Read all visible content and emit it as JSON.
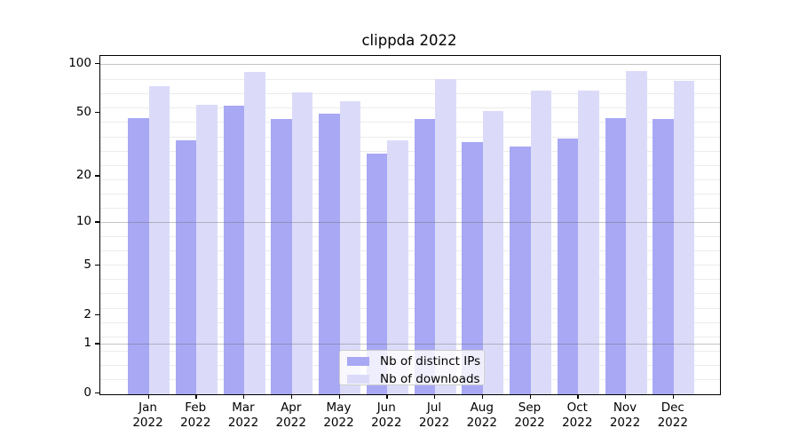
{
  "title": "clippda 2022",
  "chart_data": {
    "type": "bar",
    "title": "clippda 2022",
    "categories": [
      "Jan",
      "Feb",
      "Mar",
      "Apr",
      "May",
      "Jun",
      "Jul",
      "Aug",
      "Sep",
      "Oct",
      "Nov",
      "Dec"
    ],
    "x_tick_year": "2022",
    "series": [
      {
        "name": "Nb of distinct IPs",
        "color": "#a8a8f5",
        "values": [
          47,
          34,
          56,
          46,
          50,
          28,
          46,
          33,
          31,
          35,
          47,
          46
        ]
      },
      {
        "name": "Nb of downloads",
        "color": "#dbdbf9",
        "values": [
          74,
          57,
          90,
          68,
          60,
          34,
          82,
          52,
          69,
          69,
          91,
          80
        ]
      }
    ],
    "xlabel": "",
    "ylabel": "",
    "y_scale": "log1p (position proportional to ln(1+value))",
    "y_ticks": [
      100,
      50,
      20,
      10,
      5,
      2,
      1,
      0
    ],
    "ylim": [
      0,
      113
    ],
    "grid": "faint horizontal minor lines evenly spaced in ln(1+y); darker lines at y=1, 10, 100",
    "legend_position": "lower center inside plot"
  },
  "colors": {
    "distinct_ips_bar": "#a8a8f5",
    "downloads_bar": "#dbdbf9",
    "grid_minor": "#ececec",
    "grid_major": "#b3b3b3",
    "spine": "#000000",
    "background": "#ffffff"
  }
}
